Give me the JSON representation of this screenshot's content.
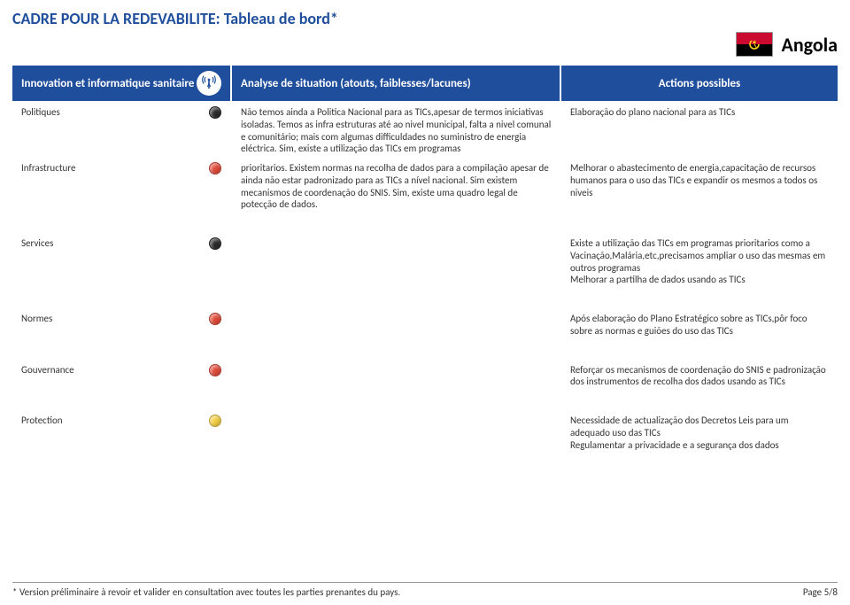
{
  "title": "CADRE POUR LA REDEVABILITE: Tableau de bord*",
  "country": "Angola",
  "flag": {
    "top_color": "#cc092f",
    "bottom_color": "#000000",
    "emblem_color": "#f9d616"
  },
  "columns": {
    "c1": "Innovation et informatique sanitaire",
    "c2": "Analyse de situation (atouts, faiblesses/lacunes)",
    "c3": "Actions possibles"
  },
  "header_bg": "#1f4e9c",
  "status_colors": {
    "black": "#2b2b2b",
    "red": "#e04b3a",
    "yellow": "#f3cf45"
  },
  "rows": [
    {
      "category": "Politiques",
      "status": "black",
      "analysis": "Não temos ainda a Politica Nacional para as TICs,apesar de termos iniciativas isoladas. Temos as infra estruturas até ao nivel municipal, falta a nivel comunal e comunitário; mais com algumas difficuldades no suministro de energia eléctrica. Sim, existe a utilização das TICs em programas",
      "action": "Elaboração do plano nacional para as TICs"
    },
    {
      "category": "Infrastructure",
      "status": "red",
      "analysis": "prioritarios. Existem normas na recolha de dados para a compilação apesar de ainda não  estar padronizado para as TICs a nível nacional. Sim existem mecanismos de coordenação do SNIS. Sim, existe uma quadro legal de potecção de dados.",
      "action": "Melhorar o abastecimento de energia,capacitação de recursos humanos para o uso das TICs e expandir os mesmos a todos os niveis"
    },
    {
      "category": "Services",
      "status": "black",
      "analysis": "",
      "action": "Existe a utilização das TICs em programas prioritarios como a Vacinação,Malária,etc,precisamos ampliar o uso das mesmas em outros programas\nMelhorar a partilha de dados usando as TICs",
      "gap_before": true
    },
    {
      "category": "Normes",
      "status": "red",
      "analysis": "",
      "action": "Após elaboração do Plano Estratégico sobre as TICs,pôr foco sobre as normas e guiões do uso das TICs",
      "gap_before": true
    },
    {
      "category": "Gouvernance",
      "status": "red",
      "analysis": "",
      "action": "Reforçar os mecanismos de coordenação do SNIS e padronização dos instrumentos de recolha dos dados usando as TICs",
      "gap_before": true
    },
    {
      "category": "Protection",
      "status": "yellow",
      "analysis": "",
      "action": "Necessidade de actualização dos Decretos Leis para um adequado uso das TICs\nRegulamentar a privacidade e a segurança dos dados",
      "gap_before": true
    }
  ],
  "footnote": "* Version préliminaire à revoir et valider en consultation avec toutes les parties prenantes du pays.",
  "page_indicator": "Page 5/8"
}
